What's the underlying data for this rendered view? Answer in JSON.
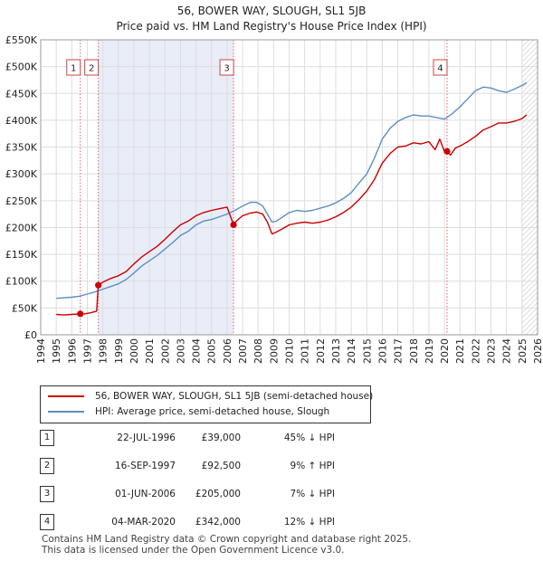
{
  "colors": {
    "price_line": "#cc0000",
    "hpi_line": "#5b8fc7",
    "shade": "#e8edf8",
    "grid": "#dddddd",
    "marker": "#cc0000",
    "vline": "#e06060"
  },
  "chart_data": {
    "type": "line",
    "title": "56, BOWER WAY, SLOUGH, SL1 5JB",
    "subtitle": "Price paid vs. HM Land Registry's House Price Index (HPI)",
    "xlim": [
      1994,
      2026
    ],
    "ylim": [
      0,
      550000
    ],
    "x_ticks": [
      1994,
      1995,
      1996,
      1997,
      1998,
      1999,
      2000,
      2001,
      2002,
      2003,
      2004,
      2005,
      2006,
      2007,
      2008,
      2009,
      2010,
      2011,
      2012,
      2013,
      2014,
      2015,
      2016,
      2017,
      2018,
      2019,
      2020,
      2021,
      2022,
      2023,
      2024,
      2025,
      2026
    ],
    "y_ticks": [
      {
        "value": 0,
        "label": "£0"
      },
      {
        "value": 50000,
        "label": "£50K"
      },
      {
        "value": 100000,
        "label": "£100K"
      },
      {
        "value": 150000,
        "label": "£150K"
      },
      {
        "value": 200000,
        "label": "£200K"
      },
      {
        "value": 250000,
        "label": "£250K"
      },
      {
        "value": 300000,
        "label": "£300K"
      },
      {
        "value": 350000,
        "label": "£350K"
      },
      {
        "value": 400000,
        "label": "£400K"
      },
      {
        "value": 450000,
        "label": "£450K"
      },
      {
        "value": 500000,
        "label": "£500K"
      },
      {
        "value": 550000,
        "label": "£550K"
      }
    ],
    "shaded_ranges": [
      [
        1997.71,
        2006.42
      ]
    ],
    "future_hatch_from": 2025.0,
    "series": [
      {
        "name": "56, BOWER WAY, SLOUGH, SL1 5JB (semi-detached house)",
        "color": "#cc0000",
        "x": [
          1995.0,
          1995.5,
          1996.0,
          1996.55,
          1996.8,
          1997.2,
          1997.6,
          1997.71,
          1998.0,
          1998.5,
          1999.0,
          1999.5,
          2000.0,
          2000.5,
          2001.0,
          2001.5,
          2002.0,
          2002.5,
          2003.0,
          2003.5,
          2004.0,
          2004.5,
          2005.0,
          2005.5,
          2006.0,
          2006.42,
          2006.6,
          2007.0,
          2007.5,
          2007.9,
          2008.3,
          2008.6,
          2008.9,
          2009.2,
          2009.6,
          2010.0,
          2010.5,
          2011.0,
          2011.5,
          2012.0,
          2012.5,
          2013.0,
          2013.5,
          2014.0,
          2014.5,
          2015.0,
          2015.5,
          2016.0,
          2016.5,
          2017.0,
          2017.5,
          2018.0,
          2018.5,
          2019.0,
          2019.4,
          2019.7,
          2020.0,
          2020.17,
          2020.4,
          2020.7,
          2021.0,
          2021.5,
          2022.0,
          2022.5,
          2023.0,
          2023.5,
          2024.0,
          2024.5,
          2025.0,
          2025.3
        ],
        "y": [
          38000,
          37000,
          38000,
          39000,
          39000,
          41000,
          44000,
          92500,
          98000,
          105000,
          110000,
          118000,
          132000,
          145000,
          155000,
          165000,
          178000,
          192000,
          205000,
          212000,
          222000,
          228000,
          232000,
          235000,
          238000,
          205000,
          212000,
          222000,
          227000,
          229000,
          225000,
          210000,
          188000,
          192000,
          198000,
          205000,
          208000,
          210000,
          208000,
          210000,
          214000,
          220000,
          228000,
          238000,
          252000,
          268000,
          290000,
          320000,
          338000,
          350000,
          352000,
          358000,
          356000,
          360000,
          345000,
          365000,
          342000,
          342000,
          335000,
          348000,
          352000,
          360000,
          370000,
          382000,
          388000,
          395000,
          395000,
          398000,
          403000,
          410000
        ]
      },
      {
        "name": "HPI: Average price, semi-detached house, Slough",
        "color": "#5b8fc7",
        "x": [
          1995.0,
          1995.5,
          1996.0,
          1996.5,
          1997.0,
          1997.5,
          1998.0,
          1998.5,
          1999.0,
          1999.5,
          2000.0,
          2000.5,
          2001.0,
          2001.5,
          2002.0,
          2002.5,
          2003.0,
          2003.5,
          2004.0,
          2004.5,
          2005.0,
          2005.5,
          2006.0,
          2006.5,
          2007.0,
          2007.5,
          2007.9,
          2008.3,
          2008.6,
          2008.9,
          2009.2,
          2009.6,
          2010.0,
          2010.5,
          2011.0,
          2011.5,
          2012.0,
          2012.5,
          2013.0,
          2013.5,
          2014.0,
          2014.5,
          2015.0,
          2015.5,
          2016.0,
          2016.5,
          2017.0,
          2017.5,
          2018.0,
          2018.5,
          2019.0,
          2019.5,
          2020.0,
          2020.5,
          2021.0,
          2021.5,
          2022.0,
          2022.5,
          2023.0,
          2023.5,
          2024.0,
          2024.5,
          2025.0,
          2025.3
        ],
        "y": [
          68000,
          69000,
          70000,
          72000,
          76000,
          80000,
          85000,
          90000,
          95000,
          103000,
          115000,
          128000,
          138000,
          148000,
          160000,
          172000,
          185000,
          193000,
          205000,
          212000,
          215000,
          220000,
          225000,
          232000,
          240000,
          247000,
          247000,
          240000,
          225000,
          210000,
          212000,
          220000,
          228000,
          232000,
          230000,
          232000,
          236000,
          240000,
          246000,
          254000,
          265000,
          283000,
          300000,
          330000,
          365000,
          385000,
          398000,
          405000,
          410000,
          408000,
          408000,
          405000,
          402000,
          412000,
          425000,
          440000,
          455000,
          462000,
          460000,
          455000,
          452000,
          458000,
          465000,
          470000
        ]
      }
    ],
    "transactions": [
      {
        "id": "1",
        "label": "1",
        "x": 1996.55,
        "price": 39000,
        "date": "22-JUL-1996",
        "price_label": "£39,000",
        "hpi": "45% ↓ HPI"
      },
      {
        "id": "2",
        "label": "2",
        "x": 1997.71,
        "price": 92500,
        "date": "16-SEP-1997",
        "price_label": "£92,500",
        "hpi": "9% ↑ HPI"
      },
      {
        "id": "3",
        "label": "3",
        "x": 2006.42,
        "price": 205000,
        "date": "01-JUN-2006",
        "price_label": "£205,000",
        "hpi": "7% ↓ HPI"
      },
      {
        "id": "4",
        "label": "4",
        "x": 2020.17,
        "price": 342000,
        "date": "04-MAR-2020",
        "price_label": "£342,000",
        "hpi": "12% ↓ HPI"
      }
    ]
  },
  "legend": {
    "price_label": "56, BOWER WAY, SLOUGH, SL1 5JB (semi-detached house)",
    "hpi_label": "HPI: Average price, semi-detached house, Slough"
  },
  "footer": {
    "line1": "Contains HM Land Registry data © Crown copyright and database right 2025.",
    "line2": "This data is licensed under the Open Government Licence v3.0."
  }
}
